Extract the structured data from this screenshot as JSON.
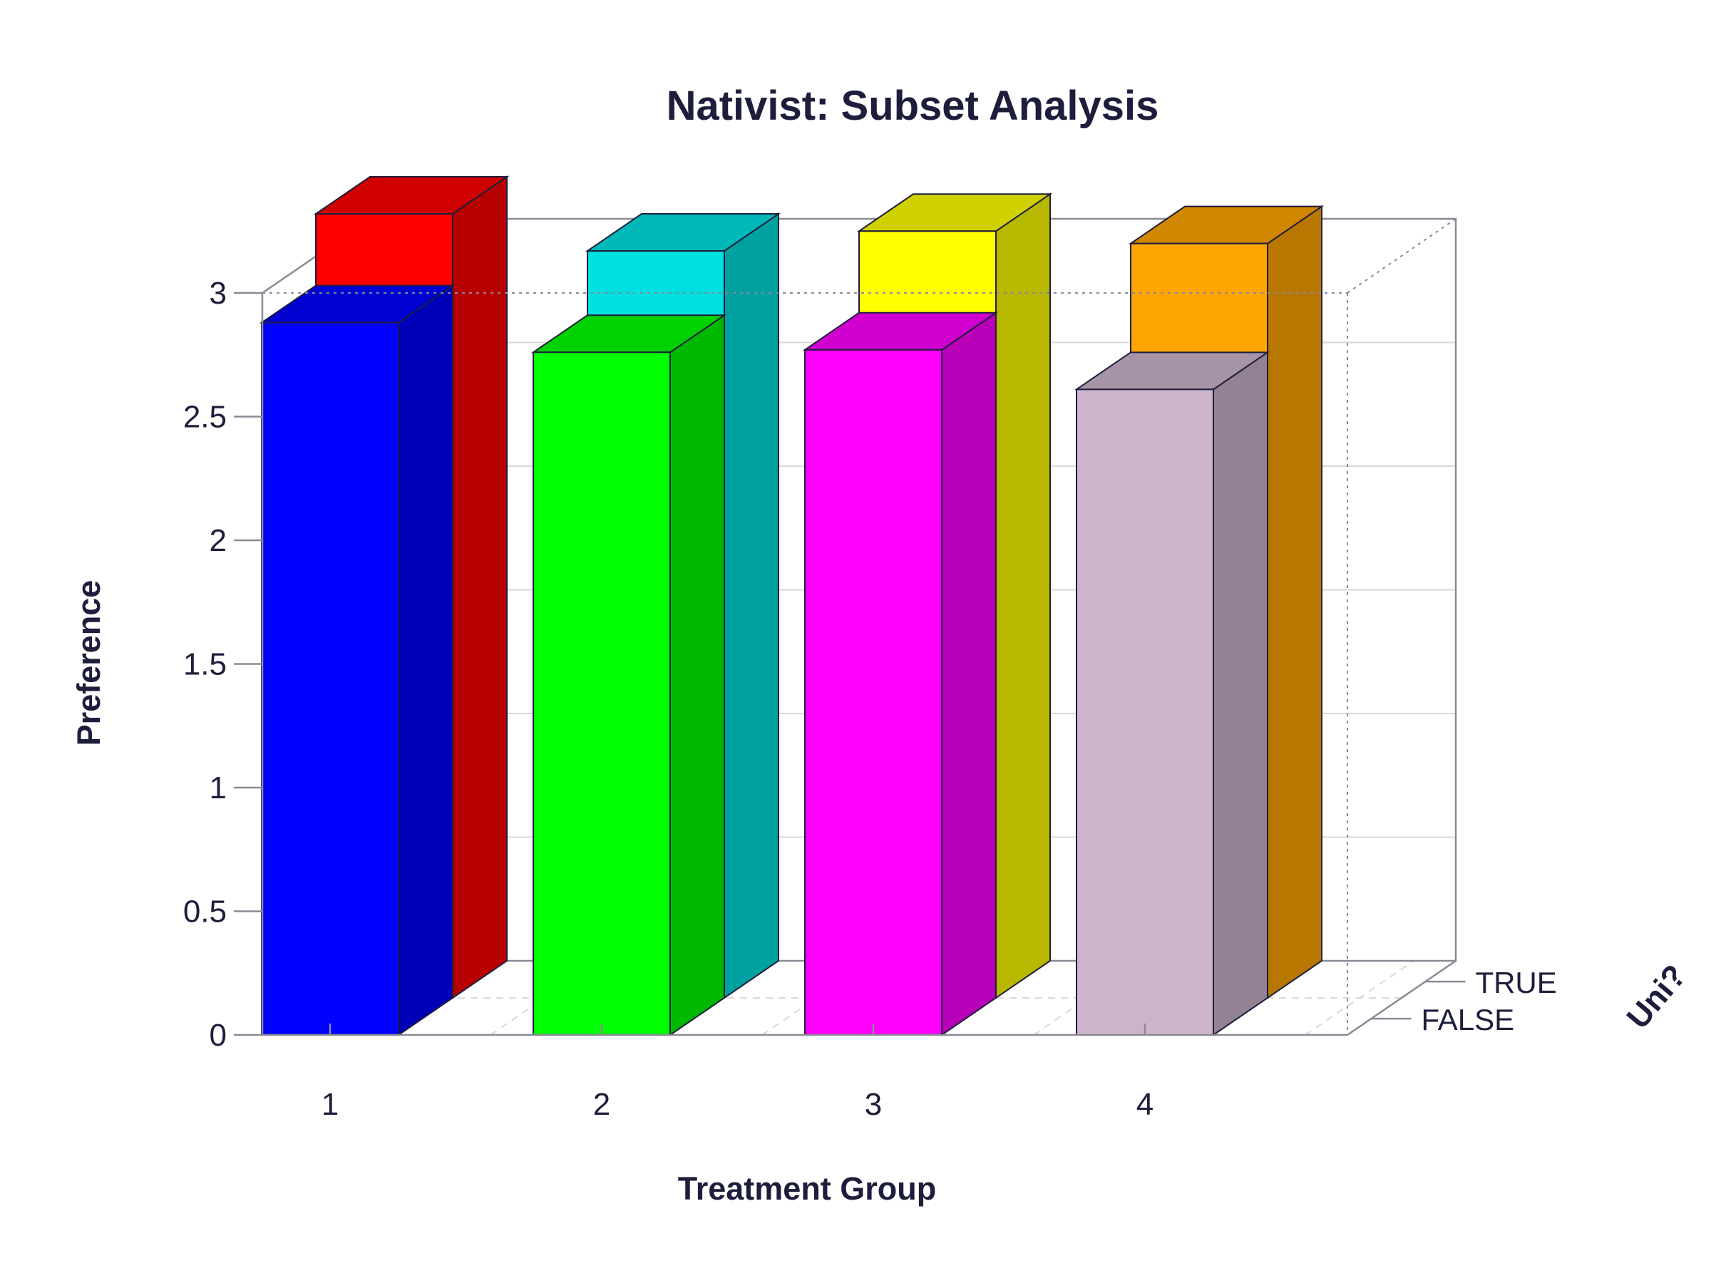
{
  "chart_data": {
    "type": "bar",
    "title": "Nativist: Subset Analysis",
    "xlabel": "Treatment Group",
    "ylabel": "Preference",
    "zlabel": "Uni?",
    "categories": [
      "1",
      "2",
      "3",
      "4"
    ],
    "depth_categories": [
      "FALSE",
      "TRUE"
    ],
    "y_ticks": [
      "0",
      "0.5",
      "1",
      "1.5",
      "2",
      "2.5",
      "3"
    ],
    "ylim": [
      0,
      3
    ],
    "grid": true,
    "series": [
      {
        "name": "FALSE",
        "values": [
          2.88,
          2.76,
          2.77,
          2.61
        ],
        "colors": [
          "#0000ff",
          "#00ff00",
          "#ff00ff",
          "#ccb5cc"
        ]
      },
      {
        "name": "TRUE",
        "values": [
          3.17,
          3.02,
          3.1,
          3.05
        ],
        "colors": [
          "#ff0000",
          "#00e0e0",
          "#ffff00",
          "#ffa500"
        ]
      }
    ]
  },
  "colors": {
    "text": "#1e1e3c",
    "axis": "#8a8a96",
    "grid": "#d8d8d8",
    "edge": "#1e1e3c"
  }
}
